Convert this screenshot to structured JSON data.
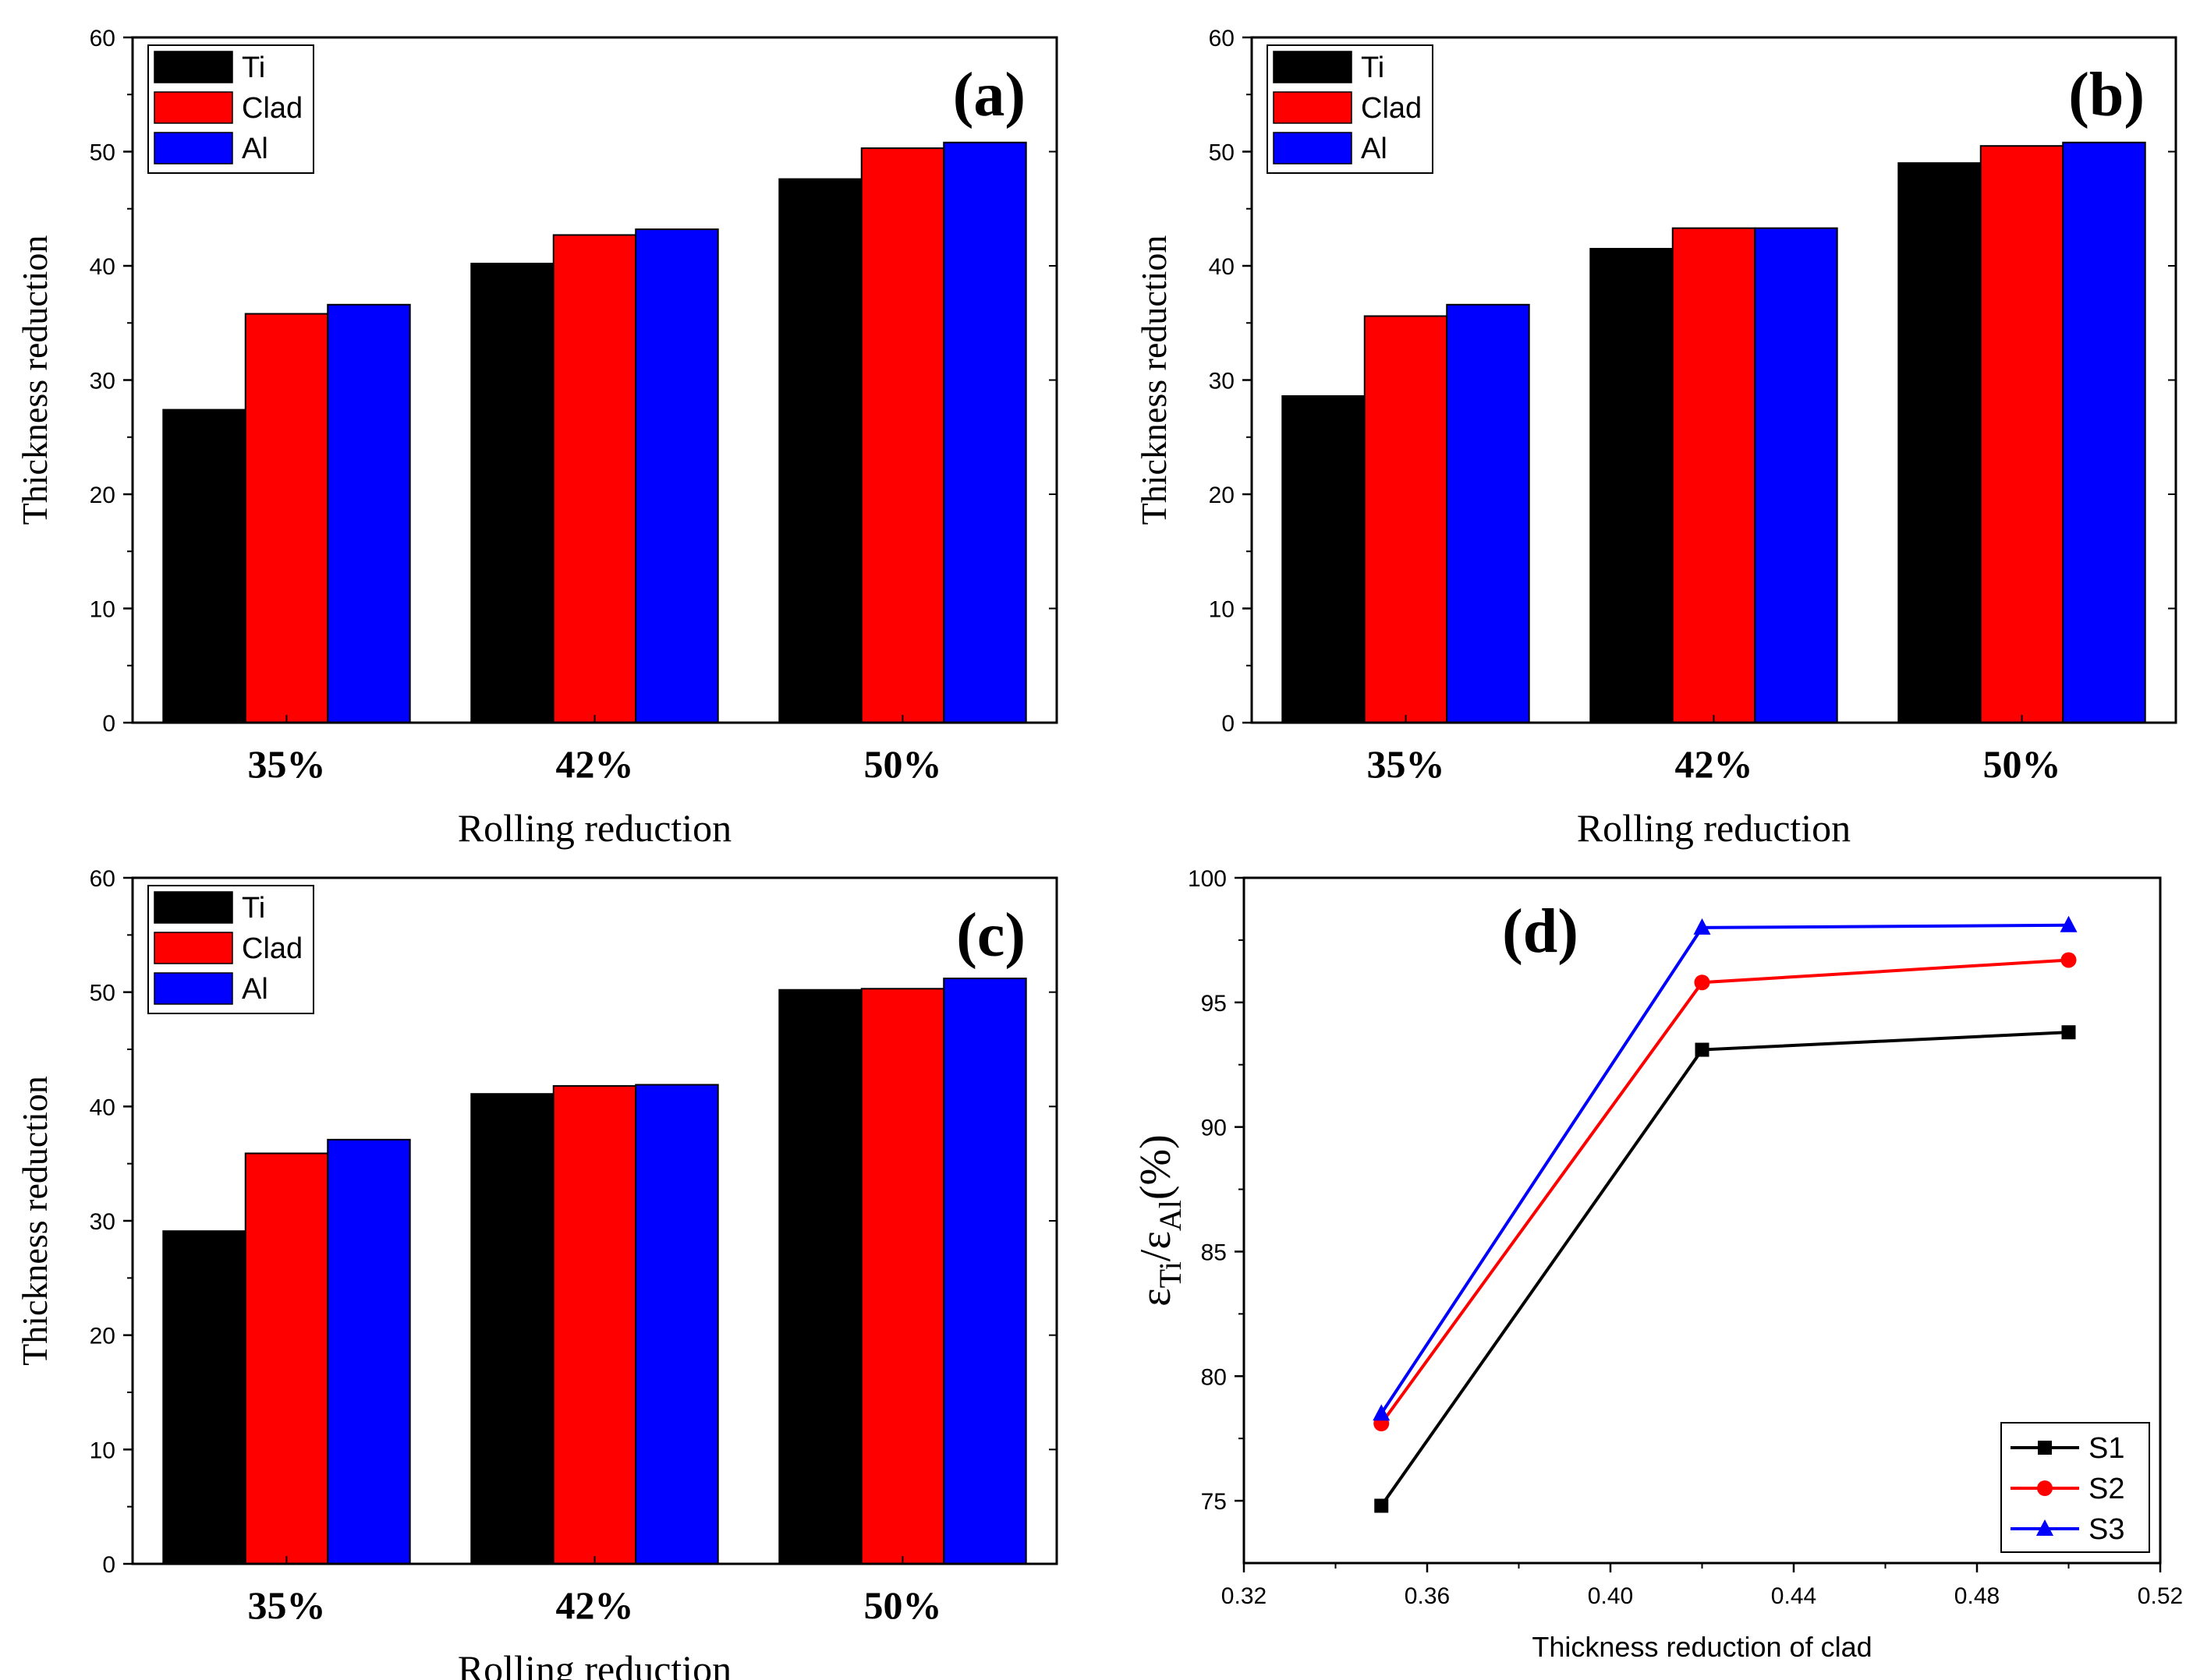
{
  "figure": {
    "colors": {
      "Ti": "#000000",
      "Clad": "#ff0000",
      "Al": "#0000ff",
      "S1": "#000000",
      "S2": "#ff0000",
      "S3": "#0000ff"
    }
  },
  "chart_data": [
    {
      "id": "a",
      "type": "bar",
      "panel_label": "(a)",
      "categories": [
        "35%",
        "42%",
        "50%"
      ],
      "series": [
        {
          "name": "Ti",
          "values": [
            27.4,
            40.2,
            47.6
          ]
        },
        {
          "name": "Clad",
          "values": [
            35.8,
            42.7,
            50.3
          ]
        },
        {
          "name": "Al",
          "values": [
            36.6,
            43.2,
            50.8
          ]
        }
      ],
      "xlabel": "Rolling reduction",
      "ylabel": "Thickness reduction",
      "ylim": [
        0,
        60
      ],
      "yticks": [
        "0",
        "10",
        "20",
        "30",
        "40",
        "50",
        "60"
      ],
      "legend": "top-left"
    },
    {
      "id": "b",
      "type": "bar",
      "panel_label": "(b)",
      "categories": [
        "35%",
        "42%",
        "50%"
      ],
      "series": [
        {
          "name": "Ti",
          "values": [
            28.6,
            41.5,
            49.0
          ]
        },
        {
          "name": "Clad",
          "values": [
            35.6,
            43.3,
            50.5
          ]
        },
        {
          "name": "Al",
          "values": [
            36.6,
            43.3,
            50.8
          ]
        }
      ],
      "xlabel": "Rolling reduction",
      "ylabel": "Thickness reduction",
      "ylim": [
        0,
        60
      ],
      "yticks": [
        "0",
        "10",
        "20",
        "30",
        "40",
        "50",
        "60"
      ],
      "legend": "top-left"
    },
    {
      "id": "c",
      "type": "bar",
      "panel_label": "(c)",
      "categories": [
        "35%",
        "42%",
        "50%"
      ],
      "series": [
        {
          "name": "Ti",
          "values": [
            29.1,
            41.1,
            50.2
          ]
        },
        {
          "name": "Clad",
          "values": [
            35.9,
            41.8,
            50.3
          ]
        },
        {
          "name": "Al",
          "values": [
            37.1,
            41.9,
            51.2
          ]
        }
      ],
      "xlabel": "Rolling reduction",
      "ylabel": "Thickness reduction",
      "ylim": [
        0,
        60
      ],
      "yticks": [
        "0",
        "10",
        "20",
        "30",
        "40",
        "50",
        "60"
      ],
      "legend": "top-left"
    },
    {
      "id": "d",
      "type": "line",
      "panel_label": "(d)",
      "x": [
        0.35,
        0.42,
        0.5
      ],
      "series": [
        {
          "name": "S1",
          "marker": "square",
          "values": [
            74.8,
            93.1,
            93.8
          ]
        },
        {
          "name": "S2",
          "marker": "circle",
          "values": [
            78.1,
            95.8,
            96.7
          ]
        },
        {
          "name": "S3",
          "marker": "triangle",
          "values": [
            78.5,
            98.0,
            98.1
          ]
        }
      ],
      "xlabel": "Thickness reduction of clad",
      "ylabel": {
        "eps1": "ε",
        "sub1": "Ti",
        "slash": "/",
        "eps2": "ε",
        "sub2": "Al",
        "unit": "(%)"
      },
      "xlim": [
        0.32,
        0.52
      ],
      "ylim": [
        72.5,
        100
      ],
      "xticks": [
        "0.32",
        "0.36",
        "0.40",
        "0.44",
        "0.48",
        "0.52"
      ],
      "yticks": [
        "75",
        "80",
        "85",
        "90",
        "95",
        "100"
      ],
      "legend": "bottom-right"
    }
  ]
}
